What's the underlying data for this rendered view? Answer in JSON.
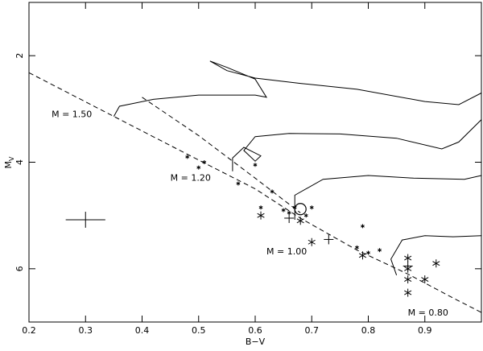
{
  "chart_data": {
    "type": "scatter",
    "title": "",
    "xlabel": "B−V",
    "ylabel_main": "M",
    "ylabel_sub": "V",
    "xlim": [
      0.2,
      1.0
    ],
    "ylim": [
      7.0,
      1.0
    ],
    "y_inverted": true,
    "grid": false,
    "xticks": [
      0.2,
      0.3,
      0.4,
      0.5,
      0.6,
      0.7,
      0.8,
      0.9
    ],
    "xtick_labels": [
      "0.2",
      "0.3",
      "0.4",
      "0.5",
      "0.6",
      "0.7",
      "0.8",
      "0.9"
    ],
    "yticks": [
      2,
      4,
      6
    ],
    "ytick_labels": [
      "2",
      "4",
      "6"
    ],
    "zams_line": {
      "style": "dashed",
      "points": [
        [
          0.2,
          2.32
        ],
        [
          0.35,
          3.14
        ],
        [
          0.48,
          3.85
        ],
        [
          0.6,
          4.5
        ],
        [
          0.68,
          5.05
        ],
        [
          0.78,
          5.65
        ],
        [
          0.87,
          6.1
        ],
        [
          0.95,
          6.55
        ],
        [
          1.0,
          6.82
        ]
      ]
    },
    "offset_line": {
      "style": "dashed",
      "points": [
        [
          0.4,
          2.78
        ],
        [
          0.5,
          3.5
        ],
        [
          0.6,
          4.3
        ],
        [
          0.68,
          4.95
        ]
      ]
    },
    "tracks": [
      {
        "label": "M = 1.50",
        "points": [
          [
            0.35,
            3.14
          ],
          [
            0.36,
            2.95
          ],
          [
            0.42,
            2.82
          ],
          [
            0.5,
            2.74
          ],
          [
            0.6,
            2.74
          ],
          [
            0.62,
            2.78
          ],
          [
            0.6,
            2.44
          ],
          [
            0.55,
            2.22
          ],
          [
            0.52,
            2.1
          ],
          [
            0.55,
            2.28
          ],
          [
            0.6,
            2.42
          ],
          [
            0.68,
            2.52
          ],
          [
            0.78,
            2.63
          ],
          [
            0.9,
            2.86
          ],
          [
            0.96,
            2.92
          ],
          [
            1.0,
            2.7
          ]
        ]
      },
      {
        "label": "M = 1.20",
        "points": [
          [
            0.56,
            4.17
          ],
          [
            0.56,
            3.92
          ],
          [
            0.58,
            3.72
          ],
          [
            0.61,
            3.88
          ],
          [
            0.6,
            3.98
          ],
          [
            0.58,
            3.78
          ],
          [
            0.6,
            3.52
          ],
          [
            0.66,
            3.46
          ],
          [
            0.75,
            3.47
          ],
          [
            0.85,
            3.55
          ],
          [
            0.93,
            3.75
          ],
          [
            0.96,
            3.62
          ],
          [
            1.0,
            3.2
          ]
        ]
      },
      {
        "label": "M = 1.00",
        "points": [
          [
            0.67,
            5.08
          ],
          [
            0.67,
            4.62
          ],
          [
            0.72,
            4.32
          ],
          [
            0.8,
            4.25
          ],
          [
            0.88,
            4.3
          ],
          [
            0.97,
            4.32
          ],
          [
            1.0,
            4.25
          ]
        ]
      },
      {
        "label": "M = 0.80",
        "points": [
          [
            0.85,
            6.12
          ],
          [
            0.84,
            5.82
          ],
          [
            0.86,
            5.46
          ],
          [
            0.9,
            5.38
          ],
          [
            0.95,
            5.4
          ],
          [
            1.0,
            5.38
          ]
        ]
      }
    ],
    "annotations": [
      {
        "text": "M =  1.50",
        "x": 0.24,
        "y": 3.15
      },
      {
        "text": "M =  1.20",
        "x": 0.45,
        "y": 4.35
      },
      {
        "text": "M =  1.00",
        "x": 0.62,
        "y": 5.73
      },
      {
        "text": "M =  0.80",
        "x": 0.87,
        "y": 7.75
      }
    ],
    "points_large_star": [
      [
        0.61,
        5.0
      ],
      [
        0.68,
        5.1
      ],
      [
        0.7,
        5.5
      ],
      [
        0.79,
        5.75
      ],
      [
        0.87,
        5.8
      ],
      [
        0.87,
        6.0
      ],
      [
        0.87,
        6.2
      ],
      [
        0.87,
        6.45
      ],
      [
        0.9,
        6.2
      ],
      [
        0.92,
        5.9
      ]
    ],
    "points_small_star": [
      [
        0.48,
        3.9
      ],
      [
        0.5,
        4.1
      ],
      [
        0.51,
        4.0
      ],
      [
        0.57,
        4.4
      ],
      [
        0.6,
        4.05
      ],
      [
        0.61,
        4.85
      ],
      [
        0.63,
        4.55
      ],
      [
        0.65,
        4.9
      ],
      [
        0.66,
        4.95
      ],
      [
        0.67,
        4.85
      ],
      [
        0.69,
        5.0
      ],
      [
        0.7,
        4.85
      ],
      [
        0.78,
        5.6
      ],
      [
        0.79,
        5.2
      ],
      [
        0.8,
        5.7
      ],
      [
        0.82,
        5.65
      ]
    ],
    "points_plus": [
      [
        0.66,
        5.05
      ],
      [
        0.73,
        5.45
      ],
      [
        0.87,
        5.95
      ]
    ],
    "point_sun": [
      0.68,
      4.88
    ],
    "error_bar": {
      "x": 0.3,
      "y": 5.08,
      "dx": 0.035,
      "dy": 0.15
    }
  }
}
